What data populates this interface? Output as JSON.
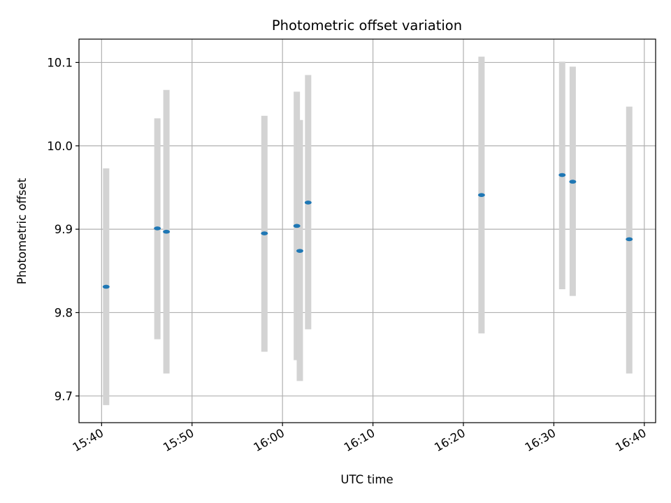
{
  "chart_data": {
    "type": "scatter",
    "title": "Photometric offset variation",
    "xlabel": "UTC time",
    "ylabel": "Photometric offset",
    "xlim": [
      "15:37:30",
      "16:41:15"
    ],
    "ylim": [
      9.668,
      10.128
    ],
    "grid": true,
    "x_ticks": [
      "15:40",
      "15:50",
      "16:00",
      "16:10",
      "16:20",
      "16:30",
      "16:40"
    ],
    "y_ticks": [
      "9.7",
      "9.8",
      "9.9",
      "10.0",
      "10.1"
    ],
    "series": [
      {
        "points": [
          {
            "x": "15:40:30",
            "y": 9.831,
            "ylow": 9.689,
            "yhigh": 9.973
          },
          {
            "x": "15:46:10",
            "y": 9.901,
            "ylow": 9.768,
            "yhigh": 10.033
          },
          {
            "x": "15:47:10",
            "y": 9.897,
            "ylow": 9.727,
            "yhigh": 10.067
          },
          {
            "x": "15:58:00",
            "y": 9.895,
            "ylow": 9.753,
            "yhigh": 10.036
          },
          {
            "x": "16:01:35",
            "y": 9.904,
            "ylow": 9.743,
            "yhigh": 10.065
          },
          {
            "x": "16:01:55",
            "y": 9.874,
            "ylow": 9.718,
            "yhigh": 10.031
          },
          {
            "x": "16:02:50",
            "y": 9.932,
            "ylow": 9.78,
            "yhigh": 10.085
          },
          {
            "x": "16:22:00",
            "y": 9.941,
            "ylow": 9.775,
            "yhigh": 10.107
          },
          {
            "x": "16:30:55",
            "y": 9.965,
            "ylow": 9.828,
            "yhigh": 10.101
          },
          {
            "x": "16:32:05",
            "y": 9.957,
            "ylow": 9.82,
            "yhigh": 10.095
          },
          {
            "x": "16:38:20",
            "y": 9.888,
            "ylow": 9.727,
            "yhigh": 10.047
          }
        ]
      }
    ]
  },
  "colors": {
    "point": "#1f77b4",
    "errorbar": "#d3d3d3",
    "grid": "#b0b0b0",
    "axes": "#000000"
  }
}
